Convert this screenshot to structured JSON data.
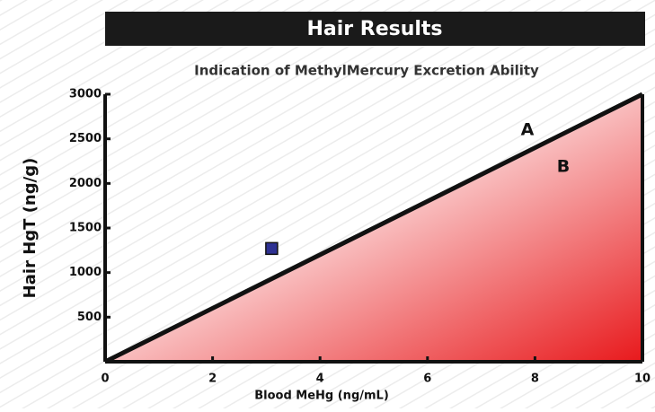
{
  "chart_data": {
    "type": "scatter",
    "title": "Hair Results",
    "subtitle": "Indication of MethylMercury Excretion Ability",
    "x_label": "Blood MeHg (ng/mL)",
    "y_label": "Hair HgT (ng/g)",
    "x": [
      3.1
    ],
    "values": [
      1270
    ],
    "color": "#2e3192",
    "reference_line": {
      "x": [
        0,
        10
      ],
      "values": [
        0,
        3000
      ],
      "color": "#111111"
    },
    "fill_colors": [
      "#ffffff",
      "#e8191c"
    ],
    "annotations": [
      "A",
      "B"
    ],
    "xlim": [
      0,
      10
    ],
    "xticks": [
      0,
      2,
      4,
      6,
      8,
      10
    ],
    "ylim": [
      0,
      3000
    ],
    "yticks": [
      500,
      1000,
      1500,
      2000,
      2500,
      3000
    ]
  }
}
